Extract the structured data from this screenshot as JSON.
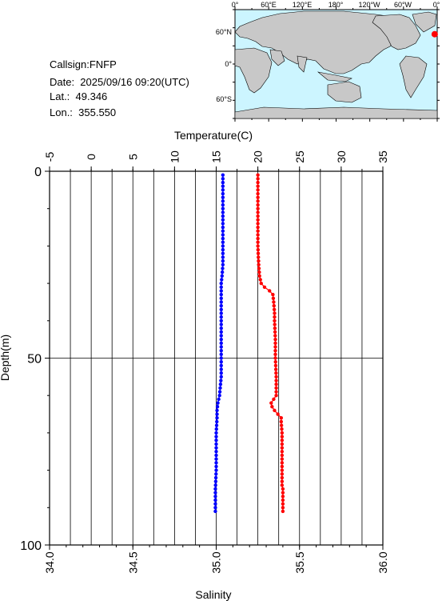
{
  "info": {
    "callsign": "Callsign:FNFP",
    "date": "Date:  2025/09/16 09:20(UTC)",
    "lat": "Lat.:  49.346",
    "lon": "Lon.:  355.550"
  },
  "map": {
    "top_labels": [
      "0°",
      "60°E",
      "120°E",
      "180°",
      "120°W",
      "60°W",
      "0°"
    ],
    "lat_labels": [
      "60°N",
      "0°",
      "60°S"
    ],
    "station": {
      "lat": 49.346,
      "lon": 355.55
    },
    "ocean_color": "#ccf5ff",
    "land_color": "#c8c8c8",
    "marker_color": "#ff0000"
  },
  "chart_data": {
    "type": "line",
    "xlabel_top": "Temperature(C)",
    "xlabel_bottom": "Salinity",
    "ylabel": "Depth(m)",
    "temperature_ticks": [
      "-5",
      "0",
      "5",
      "10",
      "15",
      "20",
      "25",
      "30",
      "35"
    ],
    "salinity_ticks": [
      "34.0",
      "34.5",
      "35.0",
      "35.5",
      "36.0"
    ],
    "depth_ticks": [
      "0",
      "50",
      "100"
    ],
    "xlim_temperature": [
      -5,
      35
    ],
    "xlim_salinity": [
      34.0,
      36.0
    ],
    "ylim_depth": [
      0,
      100
    ],
    "series": [
      {
        "color": "#0000ff",
        "axis": "salinity",
        "depth": [
          1,
          5,
          10,
          15,
          20,
          25,
          28,
          30,
          35,
          40,
          45,
          50,
          55,
          60,
          62,
          64,
          66,
          70,
          75,
          80,
          85,
          90,
          91
        ],
        "values": [
          35.04,
          35.04,
          35.04,
          35.04,
          35.04,
          35.04,
          35.035,
          35.03,
          35.03,
          35.03,
          35.03,
          35.03,
          35.03,
          35.02,
          35.01,
          35.005,
          35.005,
          35.0,
          35.0,
          35.0,
          34.995,
          34.995,
          34.995
        ]
      },
      {
        "color": "#ff0000",
        "axis": "temperature",
        "depth": [
          1,
          5,
          10,
          15,
          20,
          25,
          28,
          30,
          31,
          32,
          33,
          35,
          38,
          40,
          45,
          50,
          55,
          60,
          62,
          63,
          64,
          65,
          66,
          67,
          70,
          75,
          80,
          84,
          85,
          88,
          90,
          91
        ],
        "values": [
          20.0,
          20.0,
          20.0,
          20.0,
          20.0,
          20.1,
          20.2,
          20.4,
          20.8,
          21.4,
          21.8,
          21.9,
          22.0,
          22.0,
          22.1,
          22.1,
          22.2,
          22.2,
          21.6,
          21.7,
          22.0,
          22.4,
          22.8,
          22.8,
          22.9,
          22.9,
          22.9,
          22.9,
          23.0,
          23.0,
          23.0,
          23.0
        ]
      }
    ]
  }
}
